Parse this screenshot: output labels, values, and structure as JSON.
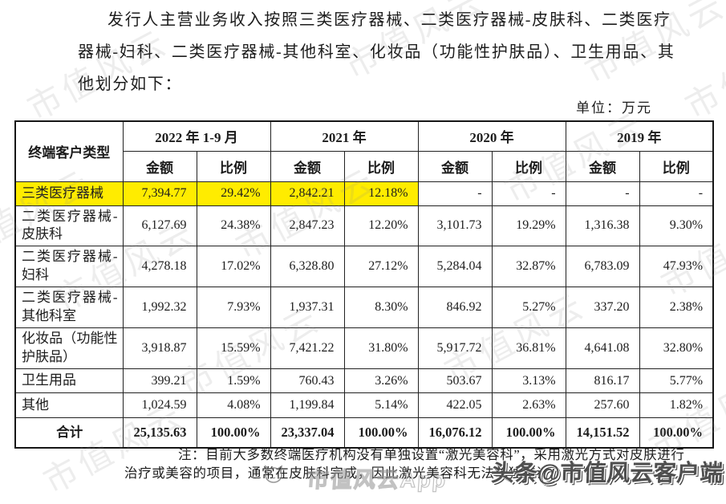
{
  "intro": {
    "lines": [
      "发行人主营业务收入按照三类医疗器械、二类医疗器械-皮肤科、二类医疗",
      "器械-妇科、二类医疗器械-其他科室、化妆品（功能性护肤品）、卫生用品、其",
      "他划分如下："
    ]
  },
  "unit_label": "单位：万元",
  "table": {
    "header": {
      "customer_type": "终端客户类型",
      "periods": [
        "2022 年 1-9 月",
        "2021 年",
        "2020 年",
        "2019 年"
      ],
      "amount_label": "金额",
      "ratio_label": "比例"
    },
    "rows": [
      {
        "label": "三类医疗器械",
        "highlight": true,
        "values": [
          "7,394.77",
          "29.42%",
          "2,842.21",
          "12.18%",
          "-",
          "-",
          "-",
          "-"
        ]
      },
      {
        "label": "二类医疗器械-皮肤科",
        "values": [
          "6,127.69",
          "24.38%",
          "2,847.23",
          "12.20%",
          "3,101.73",
          "19.29%",
          "1,316.38",
          "9.30%"
        ]
      },
      {
        "label": "二类医疗器械-妇科",
        "values": [
          "4,278.18",
          "17.02%",
          "6,328.80",
          "27.12%",
          "5,284.04",
          "32.87%",
          "6,783.09",
          "47.93%"
        ]
      },
      {
        "label": "二类医疗器械-其他科室",
        "values": [
          "1,992.32",
          "7.93%",
          "1,937.31",
          "8.30%",
          "846.92",
          "5.27%",
          "337.20",
          "2.38%"
        ]
      },
      {
        "label": "化妆品（功能性护肤品）",
        "values": [
          "3,918.87",
          "15.59%",
          "7,421.22",
          "31.80%",
          "5,917.72",
          "36.81%",
          "4,641.08",
          "32.80%"
        ]
      },
      {
        "label": "卫生用品",
        "values": [
          "399.21",
          "1.59%",
          "760.43",
          "3.26%",
          "503.67",
          "3.13%",
          "816.17",
          "5.77%"
        ]
      },
      {
        "label": "其他",
        "values": [
          "1,024.59",
          "4.08%",
          "1,199.84",
          "5.14%",
          "422.05",
          "2.63%",
          "257.60",
          "1.82%"
        ]
      },
      {
        "label": "合计",
        "total": true,
        "values": [
          "25,135.63",
          "100.00%",
          "23,337.04",
          "100.00%",
          "16,076.12",
          "100.00%",
          "14,151.52",
          "100.00%"
        ]
      }
    ]
  },
  "note": {
    "line1": "注：目前大多数终端医疗机构没有单独设置“激光美容科”，采用激光方式对皮肤进行",
    "line2": "治疗或美容的项目，通常在皮肤科完成，因此激光美容科无法单独统计。"
  },
  "watermark": {
    "text": "市值风云",
    "app_text": "市值风云App",
    "brand": "头条@市值风云客户端"
  },
  "colors": {
    "highlight": "#ffec00",
    "table_border": "#1a1a1a",
    "text": "#1c1c1c",
    "watermark_gray": "#8f8f8f",
    "brand_gray": "#4f4f4f"
  }
}
